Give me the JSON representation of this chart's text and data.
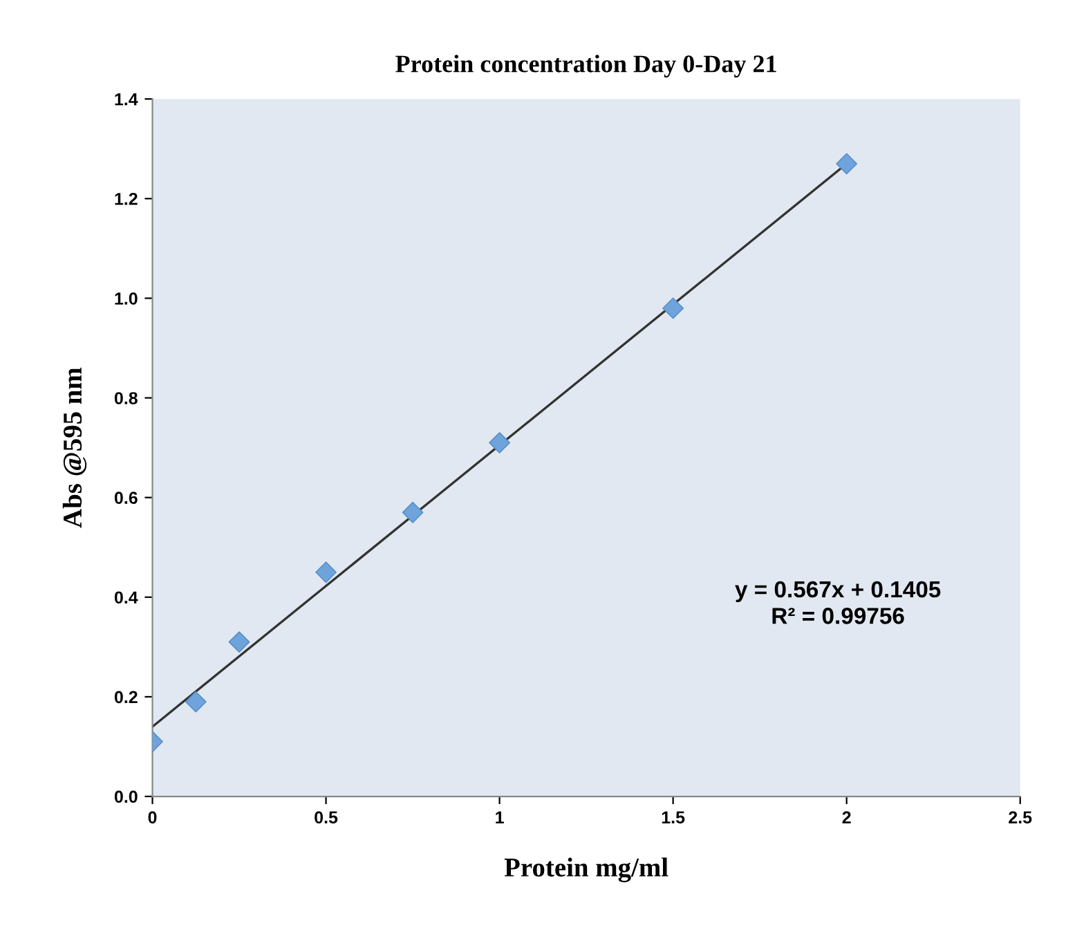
{
  "chart_data": {
    "type": "scatter",
    "title": "Protein concentration Day 0-Day 21",
    "xlabel": "Protein mg/ml",
    "ylabel": "Abs @595 nm",
    "series": [
      {
        "color": "#6fa3dc",
        "x": [
          0,
          0.125,
          0.25,
          0.5,
          0.75,
          1,
          1.5,
          2
        ],
        "values": [
          0.11,
          0.19,
          0.31,
          0.45,
          0.57,
          0.71,
          0.98,
          1.27
        ],
        "marker": "diamond"
      },
      {
        "type": "line",
        "color": "#333333",
        "x": [
          0,
          2
        ],
        "values": [
          0.14,
          1.27
        ],
        "marker": "none",
        "line_style": "solid"
      }
    ],
    "annotations": [
      "y = 0.567x + 0.1405\nR² = 0.99756"
    ],
    "xlim": [
      0,
      2.5
    ],
    "xticks": [
      0,
      0.5,
      1,
      1.5,
      2,
      2.5
    ],
    "ylim": [
      0,
      1.4
    ],
    "yticks": [
      {
        "value": 0,
        "label": "0.0"
      },
      {
        "value": 0.2,
        "label": "0.2"
      },
      {
        "value": 0.4,
        "label": "0.4"
      },
      {
        "value": 0.6,
        "label": "0.6"
      },
      {
        "value": 0.8,
        "label": "0.8"
      },
      {
        "value": 1.0,
        "label": "1.0"
      },
      {
        "value": 1.2,
        "label": "1.2"
      },
      {
        "value": 1.4,
        "label": "1.4"
      }
    ],
    "grid": false,
    "legend": false
  }
}
